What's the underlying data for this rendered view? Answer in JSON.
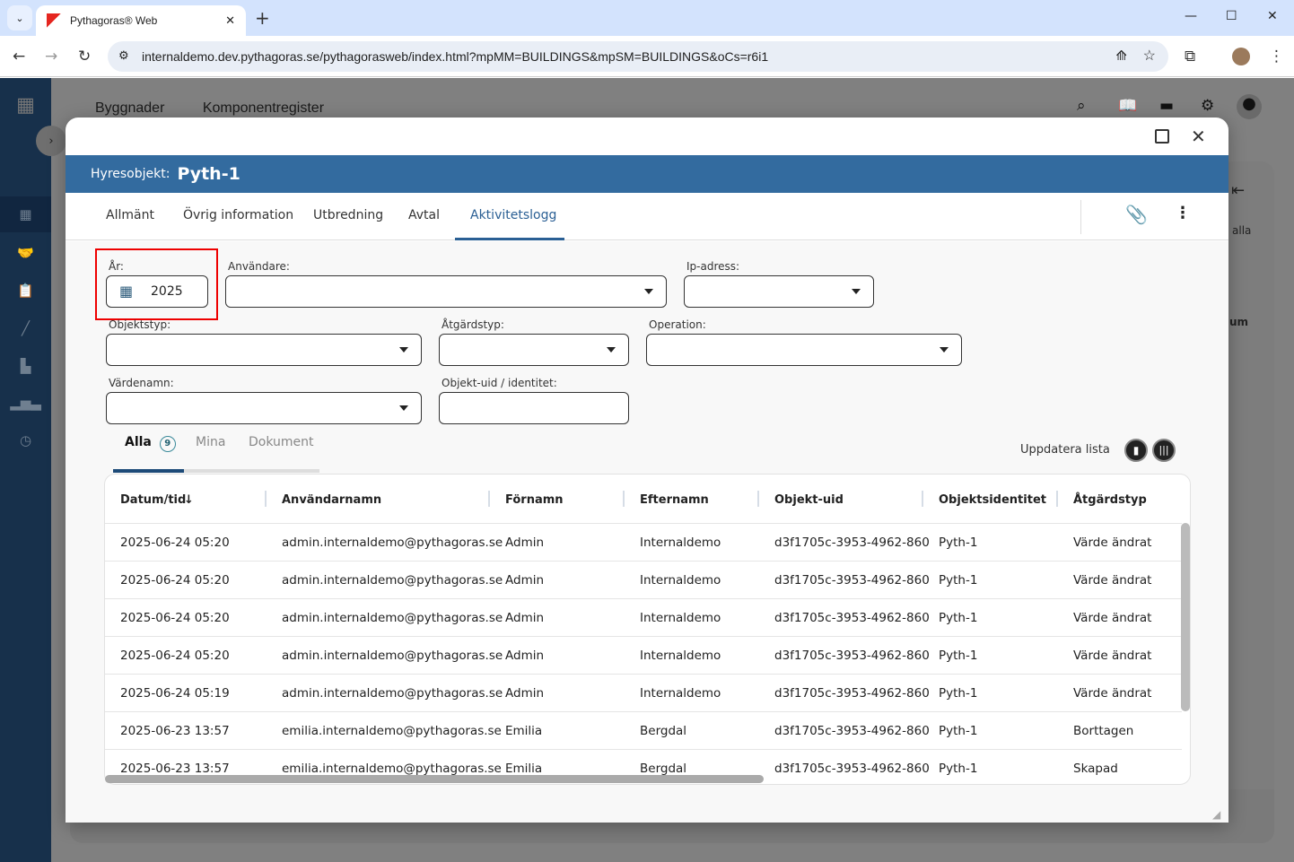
{
  "browser": {
    "tab_title": "Pythagoras® Web",
    "url": "internaldemo.dev.pythagoras.se/pythagorasweb/index.html?mpMM=BUILDINGS&mpSM=BUILDINGS&oCs=r6i1"
  },
  "app": {
    "nav": [
      "Byggnader",
      "Komponentregister"
    ],
    "bg_text": [
      "alla",
      "um"
    ]
  },
  "modal": {
    "label": "Hyresobjekt:",
    "value": "Pyth-1",
    "tabs": [
      "Allmänt",
      "Övrig information",
      "Utbredning",
      "Avtal",
      "Aktivitetslogg"
    ],
    "active_tab": "Aktivitetslogg"
  },
  "filters": {
    "year_label": "År:",
    "year_value": "2025",
    "user_label": "Användare:",
    "ip_label": "Ip-adress:",
    "objtype_label": "Objektstyp:",
    "action_label": "Åtgärdstyp:",
    "operation_label": "Operation:",
    "valuename_label": "Värdenamn:",
    "uid_label": "Objekt-uid / identitet:"
  },
  "subtabs": {
    "all": "Alla",
    "all_count": "9",
    "mine": "Mina",
    "docs": "Dokument"
  },
  "refresh_label": "Uppdatera lista",
  "table": {
    "columns": [
      "Datum/tid",
      "Användarnamn",
      "Förnamn",
      "Efternamn",
      "Objekt-uid",
      "Objektsidentitet",
      "Åtgärdstyp"
    ],
    "rows": [
      [
        "2025-06-24 05:20",
        "admin.internaldemo@pythagoras.se",
        "Admin",
        "Internaldemo",
        "d3f1705c-3953-4962-860",
        "Pyth-1",
        "Värde ändrat"
      ],
      [
        "2025-06-24 05:20",
        "admin.internaldemo@pythagoras.se",
        "Admin",
        "Internaldemo",
        "d3f1705c-3953-4962-860",
        "Pyth-1",
        "Värde ändrat"
      ],
      [
        "2025-06-24 05:20",
        "admin.internaldemo@pythagoras.se",
        "Admin",
        "Internaldemo",
        "d3f1705c-3953-4962-860",
        "Pyth-1",
        "Värde ändrat"
      ],
      [
        "2025-06-24 05:20",
        "admin.internaldemo@pythagoras.se",
        "Admin",
        "Internaldemo",
        "d3f1705c-3953-4962-860",
        "Pyth-1",
        "Värde ändrat"
      ],
      [
        "2025-06-24 05:19",
        "admin.internaldemo@pythagoras.se",
        "Admin",
        "Internaldemo",
        "d3f1705c-3953-4962-860",
        "Pyth-1",
        "Värde ändrat"
      ],
      [
        "2025-06-23 13:57",
        "emilia.internaldemo@pythagoras.se",
        "Emilia",
        "Bergdal",
        "d3f1705c-3953-4962-860",
        "Pyth-1",
        "Borttagen"
      ],
      [
        "2025-06-23 13:57",
        "emilia.internaldemo@pythagoras.se",
        "Emilia",
        "Bergdal",
        "d3f1705c-3953-4962-860",
        "Pyth-1",
        "Skapad"
      ]
    ]
  },
  "colors": {
    "accent": "#336b9f",
    "sidebar": "#17304b",
    "highlight": "#e00000"
  }
}
